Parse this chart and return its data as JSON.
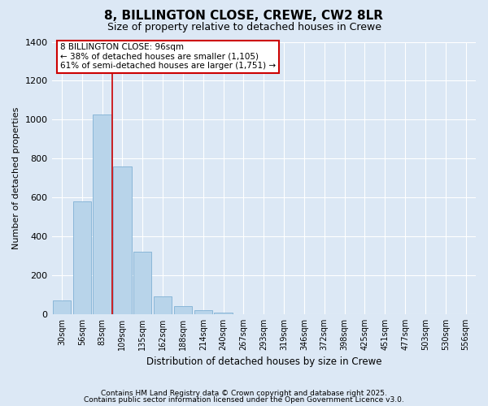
{
  "title": "8, BILLINGTON CLOSE, CREWE, CW2 8LR",
  "subtitle": "Size of property relative to detached houses in Crewe",
  "xlabel": "Distribution of detached houses by size in Crewe",
  "ylabel": "Number of detached properties",
  "bar_labels": [
    "30sqm",
    "56sqm",
    "83sqm",
    "109sqm",
    "135sqm",
    "162sqm",
    "188sqm",
    "214sqm",
    "240sqm",
    "267sqm",
    "293sqm",
    "319sqm",
    "346sqm",
    "372sqm",
    "398sqm",
    "425sqm",
    "451sqm",
    "477sqm",
    "503sqm",
    "530sqm",
    "556sqm"
  ],
  "bar_values": [
    70,
    580,
    1025,
    760,
    320,
    90,
    40,
    20,
    10,
    0,
    0,
    0,
    0,
    0,
    0,
    0,
    0,
    0,
    0,
    0,
    0
  ],
  "bar_color": "#b8d4ea",
  "bar_edge_color": "#7fb0d4",
  "ylim": [
    0,
    1400
  ],
  "yticks": [
    0,
    200,
    400,
    600,
    800,
    1000,
    1200,
    1400
  ],
  "annotation_title": "8 BILLINGTON CLOSE: 96sqm",
  "annotation_line1": "← 38% of detached houses are smaller (1,105)",
  "annotation_line2": "61% of semi-detached houses are larger (1,751) →",
  "annotation_box_color": "#ffffff",
  "annotation_box_edge": "#cc0000",
  "redline_color": "#cc0000",
  "background_color": "#dce8f5",
  "grid_color": "#ffffff",
  "footer1": "Contains HM Land Registry data © Crown copyright and database right 2025.",
  "footer2": "Contains public sector information licensed under the Open Government Licence v3.0."
}
